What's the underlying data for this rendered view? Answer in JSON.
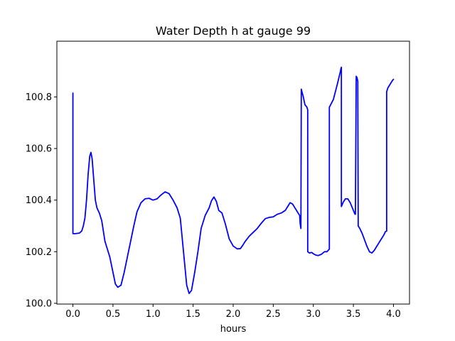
{
  "chart_data": {
    "type": "line",
    "title": "Water Depth h at gauge 99",
    "xlabel": "hours",
    "ylabel": "",
    "xlim": [
      -0.2,
      4.2
    ],
    "ylim": [
      99.997,
      101.016
    ],
    "xticks": [
      0.0,
      0.5,
      1.0,
      1.5,
      2.0,
      2.5,
      3.0,
      3.5,
      4.0
    ],
    "xtick_labels": [
      "0.0",
      "0.5",
      "1.0",
      "1.5",
      "2.0",
      "2.5",
      "3.0",
      "3.5",
      "4.0"
    ],
    "yticks": [
      100.0,
      100.2,
      100.4,
      100.6,
      100.8
    ],
    "ytick_labels": [
      "100.0",
      "100.2",
      "100.4",
      "100.6",
      "100.8"
    ],
    "grid": false,
    "series": [
      {
        "color": "#0000ff",
        "x": [
          0.0,
          0.0,
          0.03,
          0.08,
          0.11,
          0.13,
          0.15,
          0.17,
          0.19,
          0.21,
          0.225,
          0.24,
          0.26,
          0.28,
          0.3,
          0.33,
          0.36,
          0.38,
          0.4,
          0.43,
          0.46,
          0.5,
          0.53,
          0.56,
          0.6,
          0.64,
          0.68,
          0.72,
          0.76,
          0.8,
          0.85,
          0.9,
          0.95,
          1.0,
          1.05,
          1.1,
          1.15,
          1.2,
          1.25,
          1.3,
          1.34,
          1.38,
          1.42,
          1.45,
          1.48,
          1.52,
          1.56,
          1.6,
          1.65,
          1.7,
          1.73,
          1.76,
          1.79,
          1.82,
          1.86,
          1.9,
          1.95,
          2.0,
          2.05,
          2.09,
          2.12,
          2.15,
          2.2,
          2.25,
          2.3,
          2.35,
          2.4,
          2.45,
          2.5,
          2.55,
          2.6,
          2.65,
          2.68,
          2.71,
          2.74,
          2.77,
          2.8,
          2.83,
          2.835,
          2.845,
          2.85,
          2.875,
          2.895,
          2.92,
          2.93,
          2.93,
          2.95,
          2.98,
          3.0,
          3.03,
          3.06,
          3.1,
          3.14,
          3.17,
          3.2,
          3.2,
          3.25,
          3.3,
          3.335,
          3.345,
          3.35,
          3.35,
          3.37,
          3.4,
          3.43,
          3.46,
          3.5,
          3.52,
          3.525,
          3.535,
          3.545,
          3.555,
          3.555,
          3.56,
          3.58,
          3.61,
          3.64,
          3.67,
          3.7,
          3.73,
          3.76,
          3.79,
          3.82,
          3.85,
          3.88,
          3.9,
          3.915,
          3.915,
          3.93,
          3.96,
          3.99,
          4.0
        ],
        "y": [
          100.815,
          100.27,
          100.27,
          100.272,
          100.28,
          100.3,
          100.33,
          100.4,
          100.5,
          100.57,
          100.585,
          100.56,
          100.48,
          100.4,
          100.37,
          100.35,
          100.32,
          100.28,
          100.24,
          100.21,
          100.18,
          100.12,
          100.075,
          100.062,
          100.07,
          100.12,
          100.18,
          100.24,
          100.3,
          100.355,
          100.39,
          100.405,
          100.407,
          100.4,
          100.405,
          100.42,
          100.432,
          100.425,
          100.4,
          100.37,
          100.33,
          100.2,
          100.07,
          100.038,
          100.05,
          100.12,
          100.2,
          100.29,
          100.34,
          100.37,
          100.398,
          100.412,
          100.395,
          100.36,
          100.35,
          100.31,
          100.25,
          100.222,
          100.211,
          100.212,
          100.225,
          100.24,
          100.26,
          100.275,
          100.29,
          100.31,
          100.328,
          100.333,
          100.335,
          100.345,
          100.35,
          100.36,
          100.375,
          100.39,
          100.385,
          100.37,
          100.355,
          100.34,
          100.31,
          100.29,
          100.83,
          100.8,
          100.77,
          100.76,
          100.75,
          100.2,
          100.195,
          100.197,
          100.192,
          100.187,
          100.185,
          100.19,
          100.2,
          100.2,
          100.21,
          100.76,
          100.79,
          100.85,
          100.895,
          100.91,
          100.915,
          100.375,
          100.39,
          100.405,
          100.405,
          100.39,
          100.36,
          100.345,
          100.345,
          100.88,
          100.875,
          100.86,
          100.85,
          100.3,
          100.29,
          100.27,
          100.245,
          100.22,
          100.2,
          100.195,
          100.205,
          100.22,
          100.235,
          100.25,
          100.265,
          100.278,
          100.28,
          100.82,
          100.835,
          100.85,
          100.865,
          100.868
        ]
      }
    ]
  }
}
